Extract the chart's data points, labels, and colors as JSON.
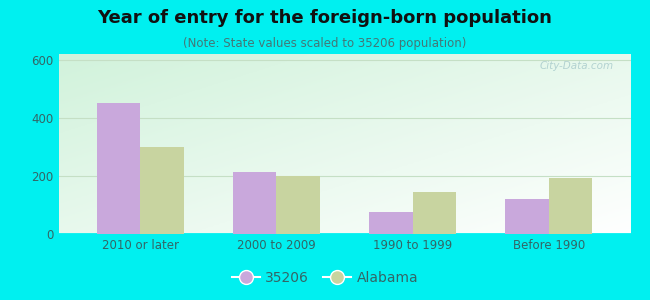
{
  "title": "Year of entry for the foreign-born population",
  "subtitle": "(Note: State values scaled to 35206 population)",
  "categories": [
    "2010 or later",
    "2000 to 2009",
    "1990 to 1999",
    "Before 1990"
  ],
  "series_35206": [
    450,
    215,
    75,
    120
  ],
  "series_alabama": [
    300,
    200,
    145,
    193
  ],
  "bar_color_35206": "#c9a8dc",
  "bar_color_alabama": "#c8d4a0",
  "background_color": "#00f0f0",
  "ylim": [
    0,
    620
  ],
  "yticks": [
    0,
    200,
    400,
    600
  ],
  "legend_label_1": "35206",
  "legend_label_2": "Alabama",
  "bar_width": 0.32,
  "title_fontsize": 13,
  "subtitle_fontsize": 8.5,
  "tick_fontsize": 8.5,
  "legend_fontsize": 10,
  "title_color": "#111111",
  "subtitle_color": "#447777",
  "tick_color": "#336666",
  "grid_color": "#c5dfc5",
  "watermark_color": "#aacccc"
}
